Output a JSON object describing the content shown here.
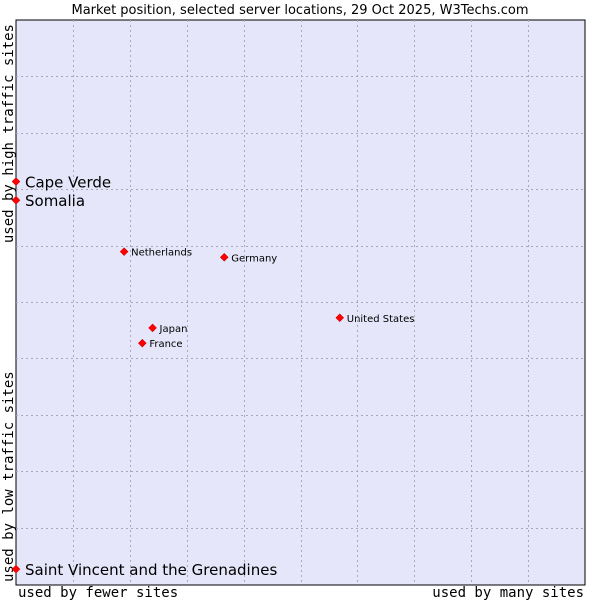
{
  "chart_data": {
    "type": "scatter",
    "title": "Market position, selected server locations, 29 Oct 2025, W3Techs.com",
    "xlabel_left": "used by fewer sites",
    "xlabel_right": "used by many sites",
    "ylabel_top": "used by high traffic sites",
    "ylabel_bottom": "used by low traffic sites",
    "xlim": [
      0,
      100
    ],
    "ylim": [
      0,
      100
    ],
    "grid": true,
    "marker_color": "#ff0000",
    "plot_background": "#e6e6fa",
    "gridline_color": "#a9a9b5",
    "points": [
      {
        "label": "Cape Verde",
        "x": 0,
        "y": 71.4,
        "size": "large"
      },
      {
        "label": "Somalia",
        "x": 0,
        "y": 68.1,
        "size": "large"
      },
      {
        "label": "Netherlands",
        "x": 19.0,
        "y": 59.0,
        "size": "small"
      },
      {
        "label": "Germany",
        "x": 36.6,
        "y": 58.0,
        "size": "small"
      },
      {
        "label": "United States",
        "x": 56.9,
        "y": 47.3,
        "size": "small"
      },
      {
        "label": "Japan",
        "x": 24.0,
        "y": 45.5,
        "size": "small"
      },
      {
        "label": "France",
        "x": 22.2,
        "y": 42.8,
        "size": "small"
      },
      {
        "label": "Saint Vincent and the Grenadines",
        "x": 0,
        "y": 2.8,
        "size": "large"
      }
    ]
  }
}
